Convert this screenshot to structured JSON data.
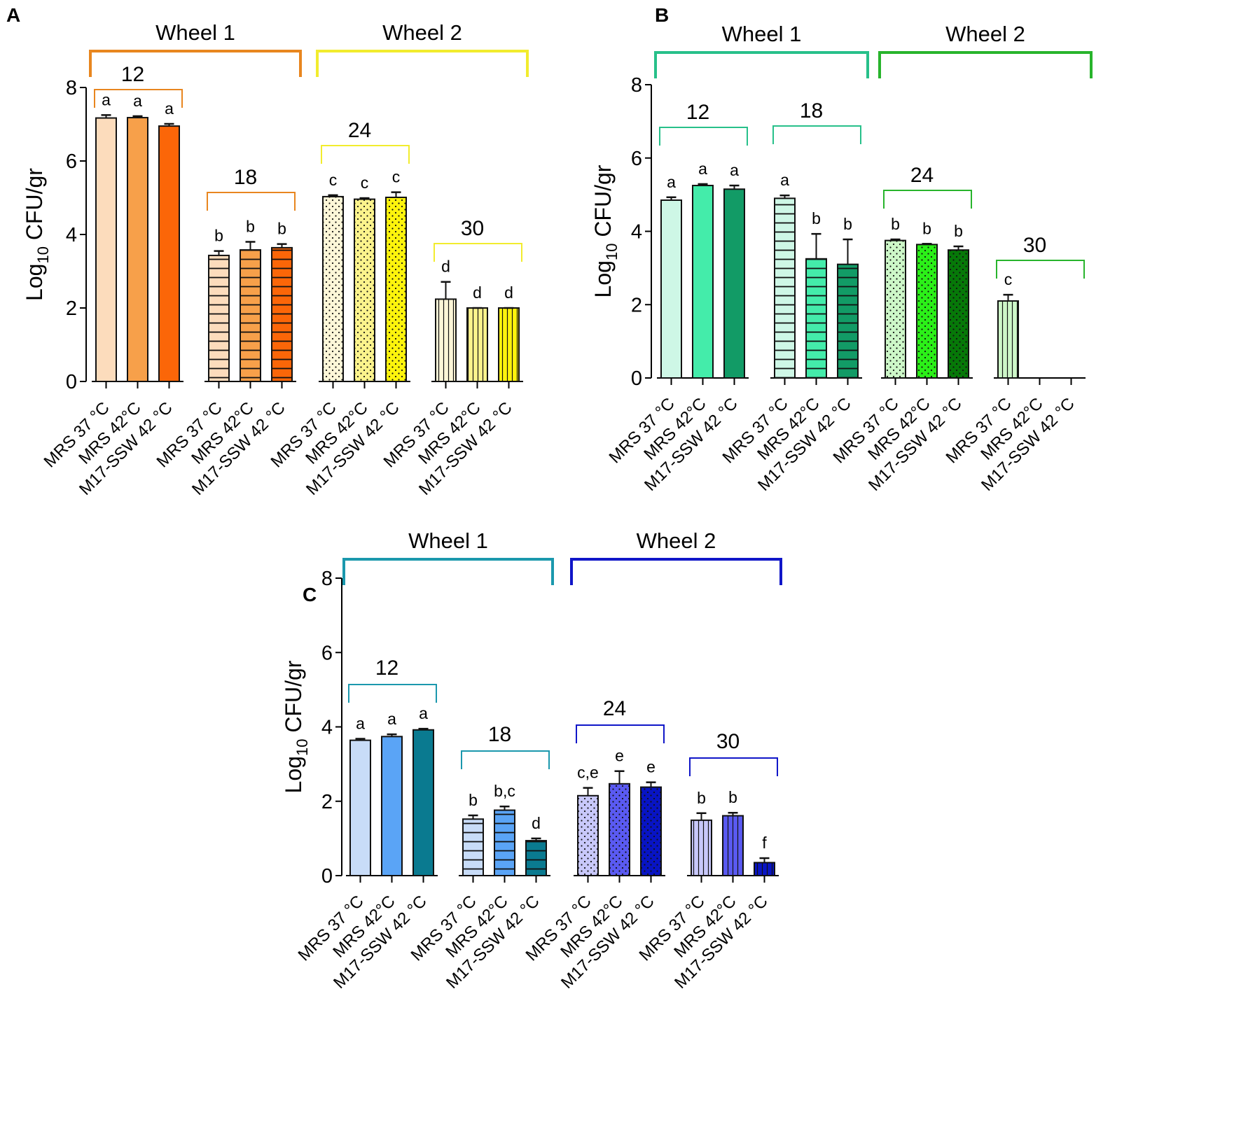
{
  "figure": {
    "xtick_labels": [
      "MRS 37 °C",
      "MRS 42°C",
      "M17-SSW 42 °C"
    ]
  },
  "chart_data": [
    {
      "type": "bar",
      "panel": "A",
      "ylabel_main": "Log",
      "ylabel_sub": "10",
      "ylabel_rest": " CFU/gr",
      "ylim": [
        0,
        8
      ],
      "yticks": [
        0,
        2,
        4,
        6,
        8
      ],
      "wheels": [
        {
          "label": "Wheel 1",
          "color": "#e8861f",
          "groups": [
            0,
            1
          ]
        },
        {
          "label": "Wheel 2",
          "color": "#f2ec2e",
          "groups": [
            2,
            3
          ]
        }
      ],
      "groups": [
        {
          "label": "12",
          "pattern": "solid",
          "bracket_color": "#e8861f",
          "bars": [
            {
              "label": "MRS 37 °C",
              "value": 7.17,
              "error": 0.08,
              "letter": "a",
              "color": "#fcdcbc"
            },
            {
              "label": "MRS 42°C",
              "value": 7.18,
              "error": 0.04,
              "letter": "a",
              "color": "#f7a04a"
            },
            {
              "label": "M17-SSW 42 °C",
              "value": 6.95,
              "error": 0.06,
              "letter": "a",
              "color": "#fb6608"
            }
          ]
        },
        {
          "label": "18",
          "pattern": "hlines",
          "bracket_color": "#e8861f",
          "bars": [
            {
              "label": "MRS 37 °C",
              "value": 3.43,
              "error": 0.12,
              "letter": "b",
              "color": "#fcdcbc"
            },
            {
              "label": "MRS 42°C",
              "value": 3.58,
              "error": 0.22,
              "letter": "b",
              "color": "#f7a04a"
            },
            {
              "label": "M17-SSW 42 °C",
              "value": 3.64,
              "error": 0.1,
              "letter": "b",
              "color": "#fb6608"
            }
          ]
        },
        {
          "label": "24",
          "pattern": "dots",
          "bracket_color": "#f2ec2e",
          "bars": [
            {
              "label": "MRS 37 °C",
              "value": 5.03,
              "error": 0.04,
              "letter": "c",
              "color": "#fdf7d8"
            },
            {
              "label": "MRS 42°C",
              "value": 4.96,
              "error": 0.03,
              "letter": "c",
              "color": "#fbf38c"
            },
            {
              "label": "M17-SSW 42 °C",
              "value": 5.01,
              "error": 0.14,
              "letter": "c",
              "color": "#fdf40c"
            }
          ]
        },
        {
          "label": "30",
          "pattern": "vlines",
          "bracket_color": "#f2ec2e",
          "bars": [
            {
              "label": "MRS 37 °C",
              "value": 2.24,
              "error": 0.47,
              "letter": "d",
              "color": "#fdf7d8"
            },
            {
              "label": "MRS 42°C",
              "value": 2.0,
              "error": 0.0,
              "letter": "d",
              "color": "#fbf38c"
            },
            {
              "label": "M17-SSW 42 °C",
              "value": 2.0,
              "error": 0.0,
              "letter": "d",
              "color": "#fdf40c"
            }
          ]
        }
      ]
    },
    {
      "type": "bar",
      "panel": "B",
      "ylabel_main": "Log",
      "ylabel_sub": "10",
      "ylabel_rest": " CFU/gr",
      "ylim": [
        0,
        8
      ],
      "yticks": [
        0,
        2,
        4,
        6,
        8
      ],
      "wheels": [
        {
          "label": "Wheel 1",
          "color": "#27c08a",
          "groups": [
            0,
            1
          ]
        },
        {
          "label": "Wheel 2",
          "color": "#28b42c",
          "groups": [
            2,
            3
          ]
        }
      ],
      "groups": [
        {
          "label": "12",
          "pattern": "solid",
          "bracket_color": "#27c08a",
          "bars": [
            {
              "label": "MRS 37 °C",
              "value": 4.85,
              "error": 0.08,
              "letter": "a",
              "color": "#cef7e6"
            },
            {
              "label": "MRS 42°C",
              "value": 5.25,
              "error": 0.04,
              "letter": "a",
              "color": "#44ecaa"
            },
            {
              "label": "M17-SSW 42 °C",
              "value": 5.15,
              "error": 0.1,
              "letter": "a",
              "color": "#129b66"
            }
          ]
        },
        {
          "label": "18",
          "pattern": "hlines",
          "bracket_color": "#27c08a",
          "bars": [
            {
              "label": "MRS 37 °C",
              "value": 4.9,
              "error": 0.08,
              "letter": "a",
              "color": "#cef7e6"
            },
            {
              "label": "MRS 42°C",
              "value": 3.25,
              "error": 0.68,
              "letter": "b",
              "color": "#44ecaa"
            },
            {
              "label": "M17-SSW 42 °C",
              "value": 3.1,
              "error": 0.68,
              "letter": "b",
              "color": "#129b66"
            }
          ]
        },
        {
          "label": "24",
          "pattern": "dots",
          "bracket_color": "#28b42c",
          "bars": [
            {
              "label": "MRS 37 °C",
              "value": 3.75,
              "error": 0.03,
              "letter": "b",
              "color": "#cdf7c8"
            },
            {
              "label": "MRS 42°C",
              "value": 3.64,
              "error": 0.02,
              "letter": "b",
              "color": "#2bf018"
            },
            {
              "label": "M17-SSW 42 °C",
              "value": 3.49,
              "error": 0.1,
              "letter": "b",
              "color": "#067808"
            }
          ]
        },
        {
          "label": "30",
          "pattern": "vlines",
          "bracket_color": "#28b42c",
          "bars": [
            {
              "label": "MRS 37 °C",
              "value": 2.1,
              "error": 0.17,
              "letter": "c",
              "color": "#cdf7c8"
            },
            {
              "label": "MRS 42°C",
              "value": 0,
              "error": 0,
              "letter": "",
              "color": "#2bf018"
            },
            {
              "label": "M17-SSW 42 °C",
              "value": 0,
              "error": 0,
              "letter": "",
              "color": "#067808"
            }
          ]
        }
      ]
    },
    {
      "type": "bar",
      "panel": "C",
      "ylabel_main": "Log",
      "ylabel_sub": "10",
      "ylabel_rest": " CFU/gr",
      "ylim": [
        0,
        8
      ],
      "yticks": [
        0,
        2,
        4,
        6,
        8
      ],
      "wheels": [
        {
          "label": "Wheel 1",
          "color": "#1b98ad",
          "groups": [
            0,
            1
          ]
        },
        {
          "label": "Wheel 2",
          "color": "#1016c8",
          "groups": [
            2,
            3
          ]
        }
      ],
      "groups": [
        {
          "label": "12",
          "pattern": "solid",
          "bracket_color": "#1b98ad",
          "bars": [
            {
              "label": "MRS 37 °C",
              "value": 3.64,
              "error": 0.04,
              "letter": "a",
              "color": "#c8dcf8"
            },
            {
              "label": "MRS 42°C",
              "value": 3.74,
              "error": 0.06,
              "letter": "a",
              "color": "#5aa4f6"
            },
            {
              "label": "M17-SSW 42 °C",
              "value": 3.92,
              "error": 0.03,
              "letter": "a",
              "color": "#0a7a90"
            }
          ]
        },
        {
          "label": "18",
          "pattern": "hlines",
          "bracket_color": "#1b98ad",
          "bars": [
            {
              "label": "MRS 37 °C",
              "value": 1.52,
              "error": 0.1,
              "letter": "b",
              "color": "#c8dcf8"
            },
            {
              "label": "MRS 42°C",
              "value": 1.76,
              "error": 0.1,
              "letter": "b,c",
              "color": "#5aa4f6"
            },
            {
              "label": "M17-SSW 42 °C",
              "value": 0.94,
              "error": 0.06,
              "letter": "d",
              "color": "#0a7a90"
            }
          ]
        },
        {
          "label": "24",
          "pattern": "dots",
          "bracket_color": "#1016c8",
          "bars": [
            {
              "label": "MRS 37 °C",
              "value": 2.15,
              "error": 0.21,
              "letter": "c,e",
              "color": "#c8c8fa"
            },
            {
              "label": "MRS 42°C",
              "value": 2.47,
              "error": 0.34,
              "letter": "e",
              "color": "#5a5af2"
            },
            {
              "label": "M17-SSW 42 °C",
              "value": 2.38,
              "error": 0.13,
              "letter": "e",
              "color": "#0814c4"
            }
          ]
        },
        {
          "label": "30",
          "pattern": "vlines",
          "bracket_color": "#1016c8",
          "bars": [
            {
              "label": "MRS 37 °C",
              "value": 1.49,
              "error": 0.19,
              "letter": "b",
              "color": "#c8c8fa"
            },
            {
              "label": "MRS 42°C",
              "value": 1.61,
              "error": 0.08,
              "letter": "b",
              "color": "#5a5af2"
            },
            {
              "label": "M17-SSW 42 °C",
              "value": 0.35,
              "error": 0.12,
              "letter": "f",
              "color": "#0814c4"
            }
          ]
        }
      ]
    }
  ]
}
